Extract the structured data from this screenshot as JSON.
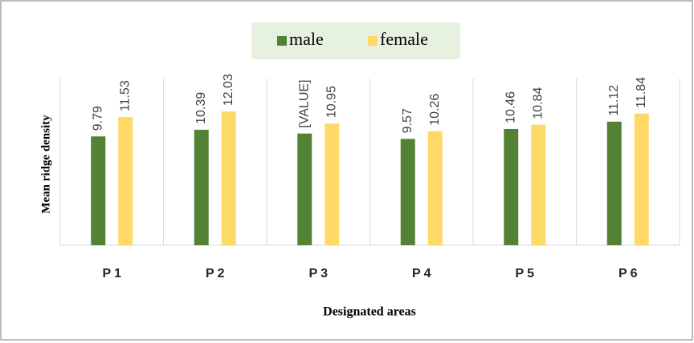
{
  "chart_data": {
    "type": "bar",
    "x_label": "Designated areas",
    "y_label": "Mean ridge density",
    "categories": [
      "P1",
      "P2",
      "P3",
      "P4",
      "P5",
      "P6"
    ],
    "series": [
      {
        "name": "male",
        "color": "#548235",
        "values": [
          9.79,
          10.39,
          10.05,
          9.57,
          10.46,
          11.12
        ],
        "value_labels": [
          "9.79",
          "10.39",
          "[VALUE]",
          "9.57",
          "10.46",
          "11.12"
        ]
      },
      {
        "name": "female",
        "color": "#ffd966",
        "values": [
          11.53,
          12.03,
          10.95,
          10.26,
          10.84,
          11.84
        ],
        "value_labels": [
          "11.53",
          "12.03",
          "10.95",
          "10.26",
          "10.84",
          "11.84"
        ]
      }
    ],
    "ylim": [
      0,
      15
    ],
    "legend": "top"
  }
}
